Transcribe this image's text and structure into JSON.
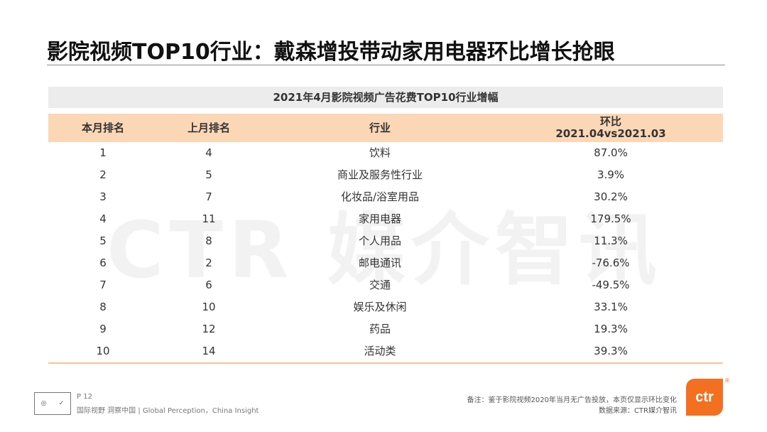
{
  "slide": {
    "title": "影院视频TOP10行业：戴森增投带动家用电器环比增长抢眼",
    "watermark": "CTR 媒介智讯"
  },
  "table": {
    "caption": "2021年4月影院视频广告花费TOP10行业增幅",
    "headers": {
      "rank_this": "本月排名",
      "rank_last": "上月排名",
      "industry": "行业",
      "change_line1": "环比",
      "change_line2": "2021.04vs2021.03"
    },
    "rows": [
      {
        "rank": "1",
        "prev": "4",
        "industry": "饮料",
        "change": "87.0%"
      },
      {
        "rank": "2",
        "prev": "5",
        "industry": "商业及服务性行业",
        "change": "3.9%"
      },
      {
        "rank": "3",
        "prev": "7",
        "industry": "化妆品/浴室用品",
        "change": "30.2%"
      },
      {
        "rank": "4",
        "prev": "11",
        "industry": "家用电器",
        "change": "179.5%"
      },
      {
        "rank": "5",
        "prev": "8",
        "industry": "个人用品",
        "change": "11.3%"
      },
      {
        "rank": "6",
        "prev": "2",
        "industry": "邮电通讯",
        "change": "-76.6%"
      },
      {
        "rank": "7",
        "prev": "6",
        "industry": "交通",
        "change": "-49.5%"
      },
      {
        "rank": "8",
        "prev": "10",
        "industry": "娱乐及休闲",
        "change": "33.1%"
      },
      {
        "rank": "9",
        "prev": "12",
        "industry": "药品",
        "change": "19.3%"
      },
      {
        "rank": "10",
        "prev": "14",
        "industry": "活动类",
        "change": "39.3%"
      }
    ]
  },
  "footer": {
    "page": "P 12",
    "tagline": "国际视野  洞察中国 | Global Perception，China Insight",
    "note_line1": "备注：鉴于影院视频2020年当月无广告投放，本页仅显示环比变化",
    "note_line2": "数据来源：CTR媒介智讯",
    "logo_text": "ctr",
    "registered": "®"
  },
  "colors": {
    "header_bg": "#fbd7b6",
    "caption_bg": "#ececec",
    "brand": "#f37021"
  }
}
